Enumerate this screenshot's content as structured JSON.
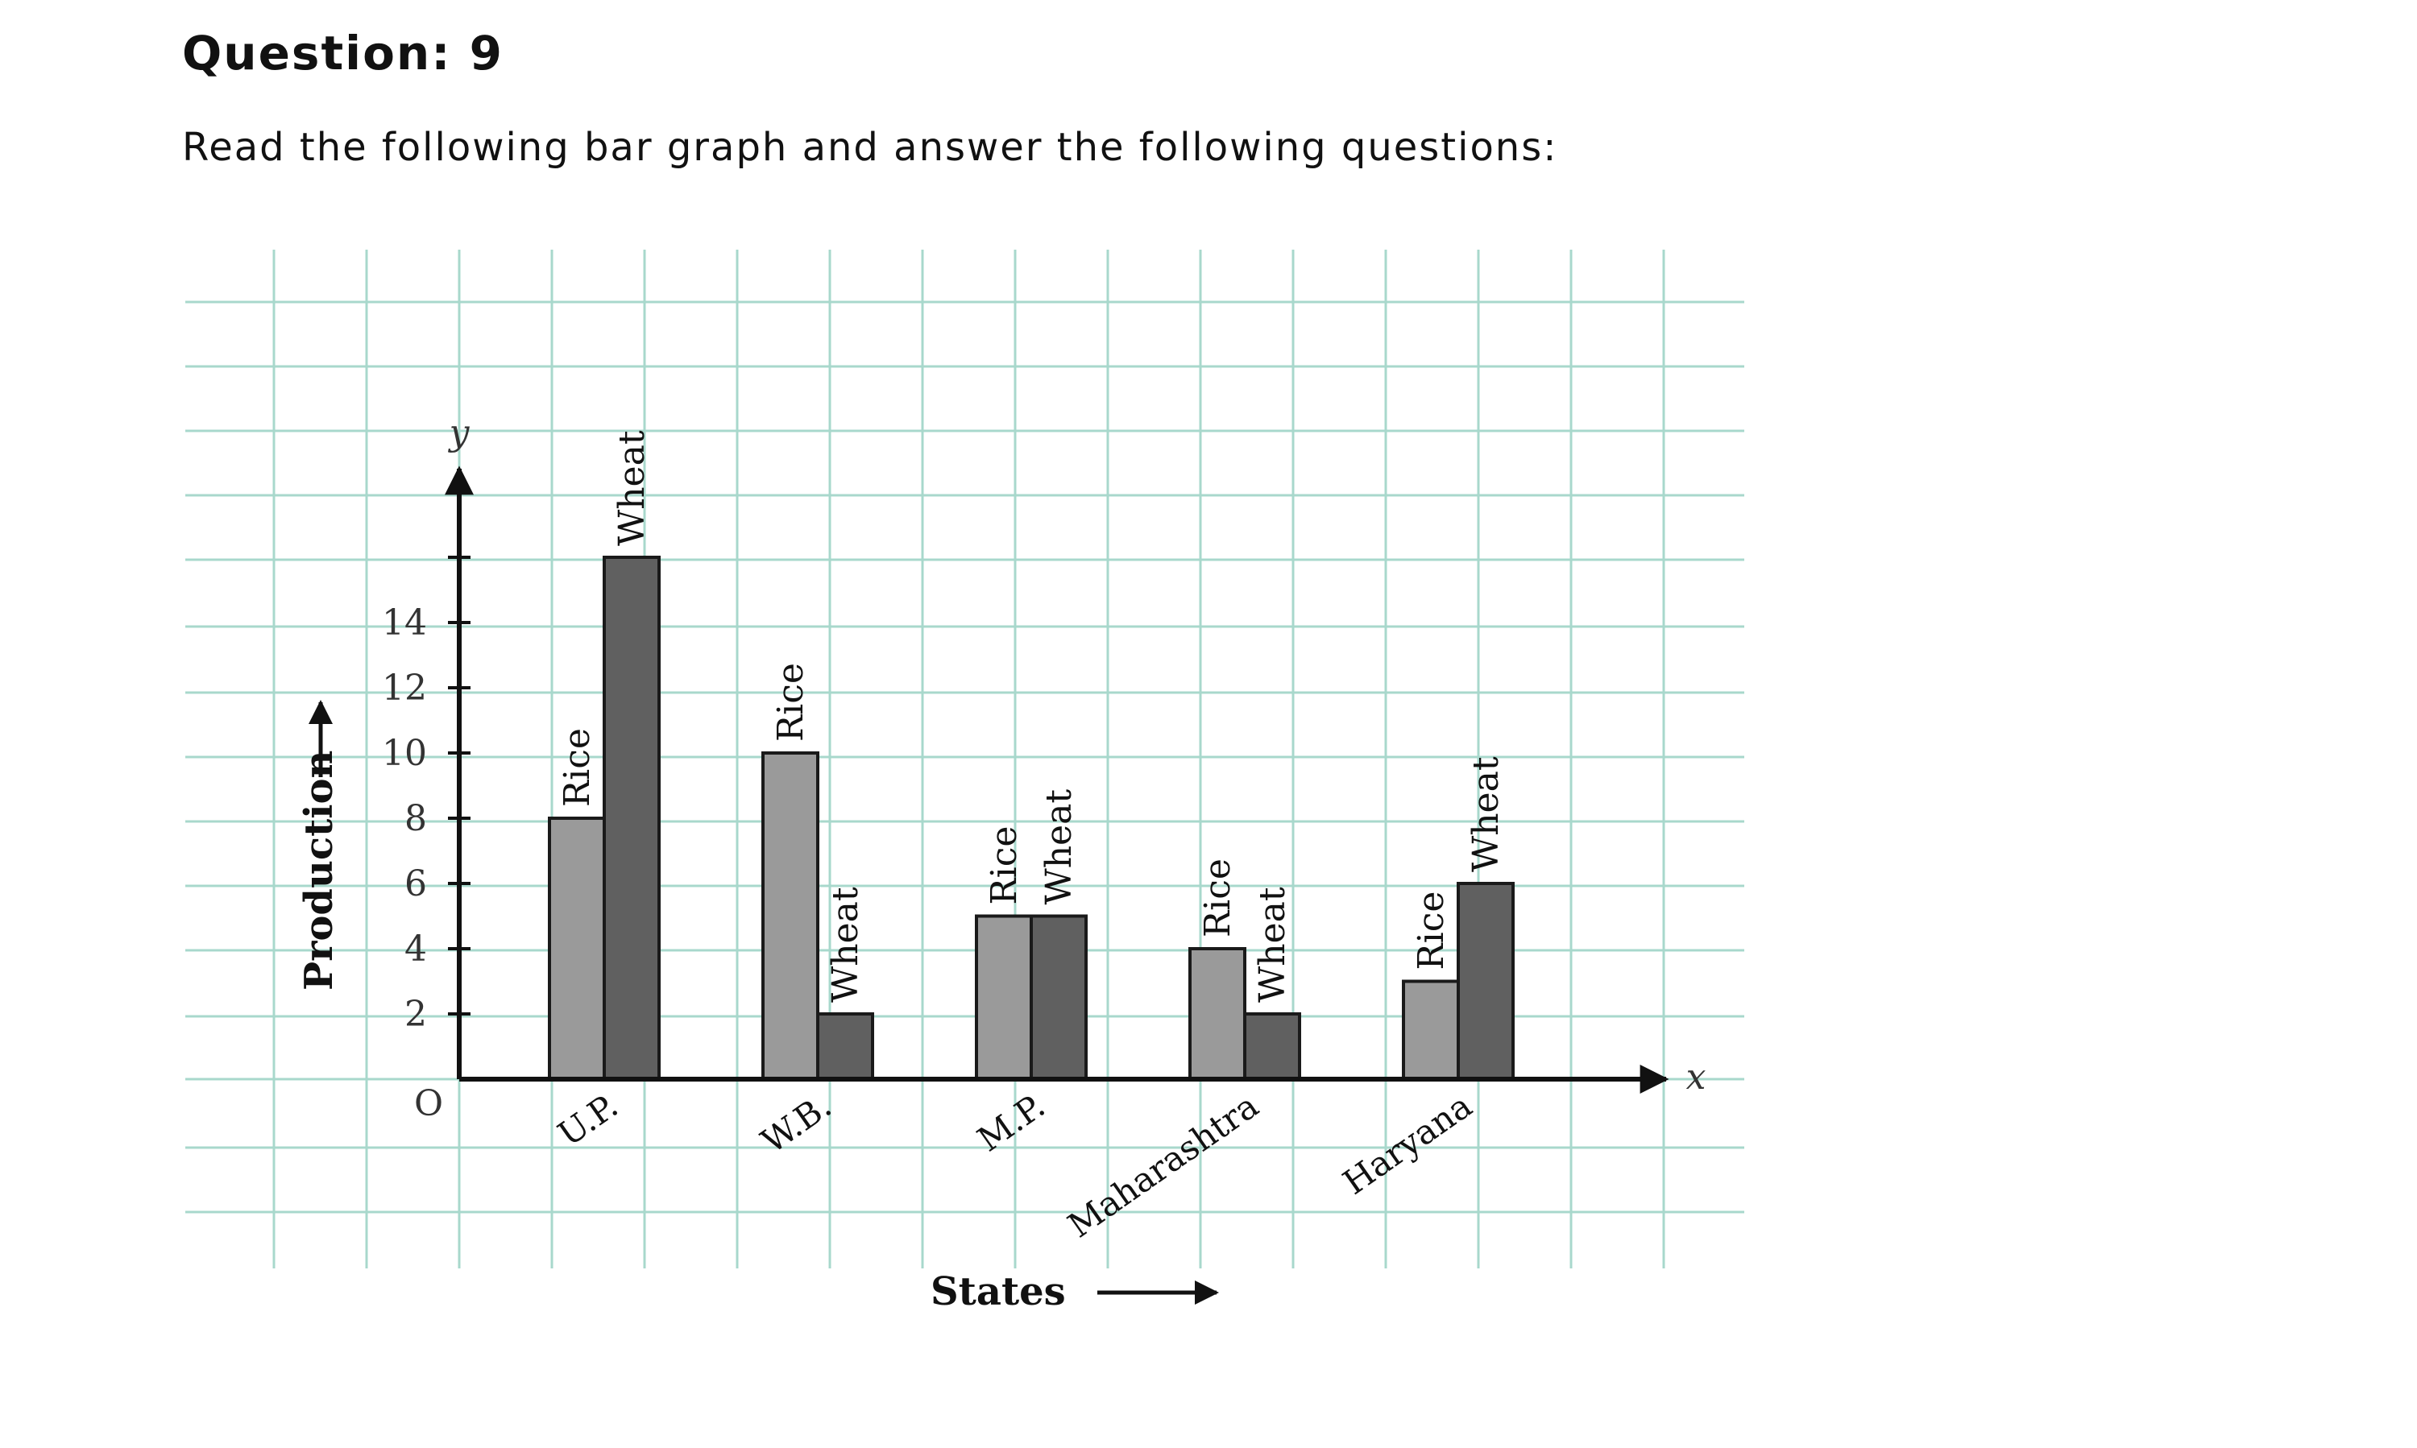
{
  "question": {
    "title": "Question: 9",
    "instruction": "Read the following bar graph and answer the following questions:"
  },
  "colors": {
    "grid": "#a8d8cc",
    "rice": "#9a9a9a",
    "wheat": "#606060",
    "axis": "#111111"
  },
  "chart_data": {
    "type": "bar",
    "categories": [
      "U.P.",
      "W.B.",
      "M.P.",
      "Maharashtra",
      "Haryana"
    ],
    "series": [
      {
        "name": "Rice",
        "values": [
          8,
          10,
          5,
          4,
          3
        ]
      },
      {
        "name": "Wheat",
        "values": [
          16,
          2,
          5,
          2,
          6
        ]
      }
    ],
    "xlabel": "States",
    "ylabel": "Production",
    "y_axis_letter": "y",
    "x_axis_letter": "x",
    "origin_label": "O",
    "ylim": [
      0,
      18
    ],
    "yticks": [
      2,
      4,
      6,
      8,
      10,
      12,
      14
    ],
    "grid": true
  }
}
